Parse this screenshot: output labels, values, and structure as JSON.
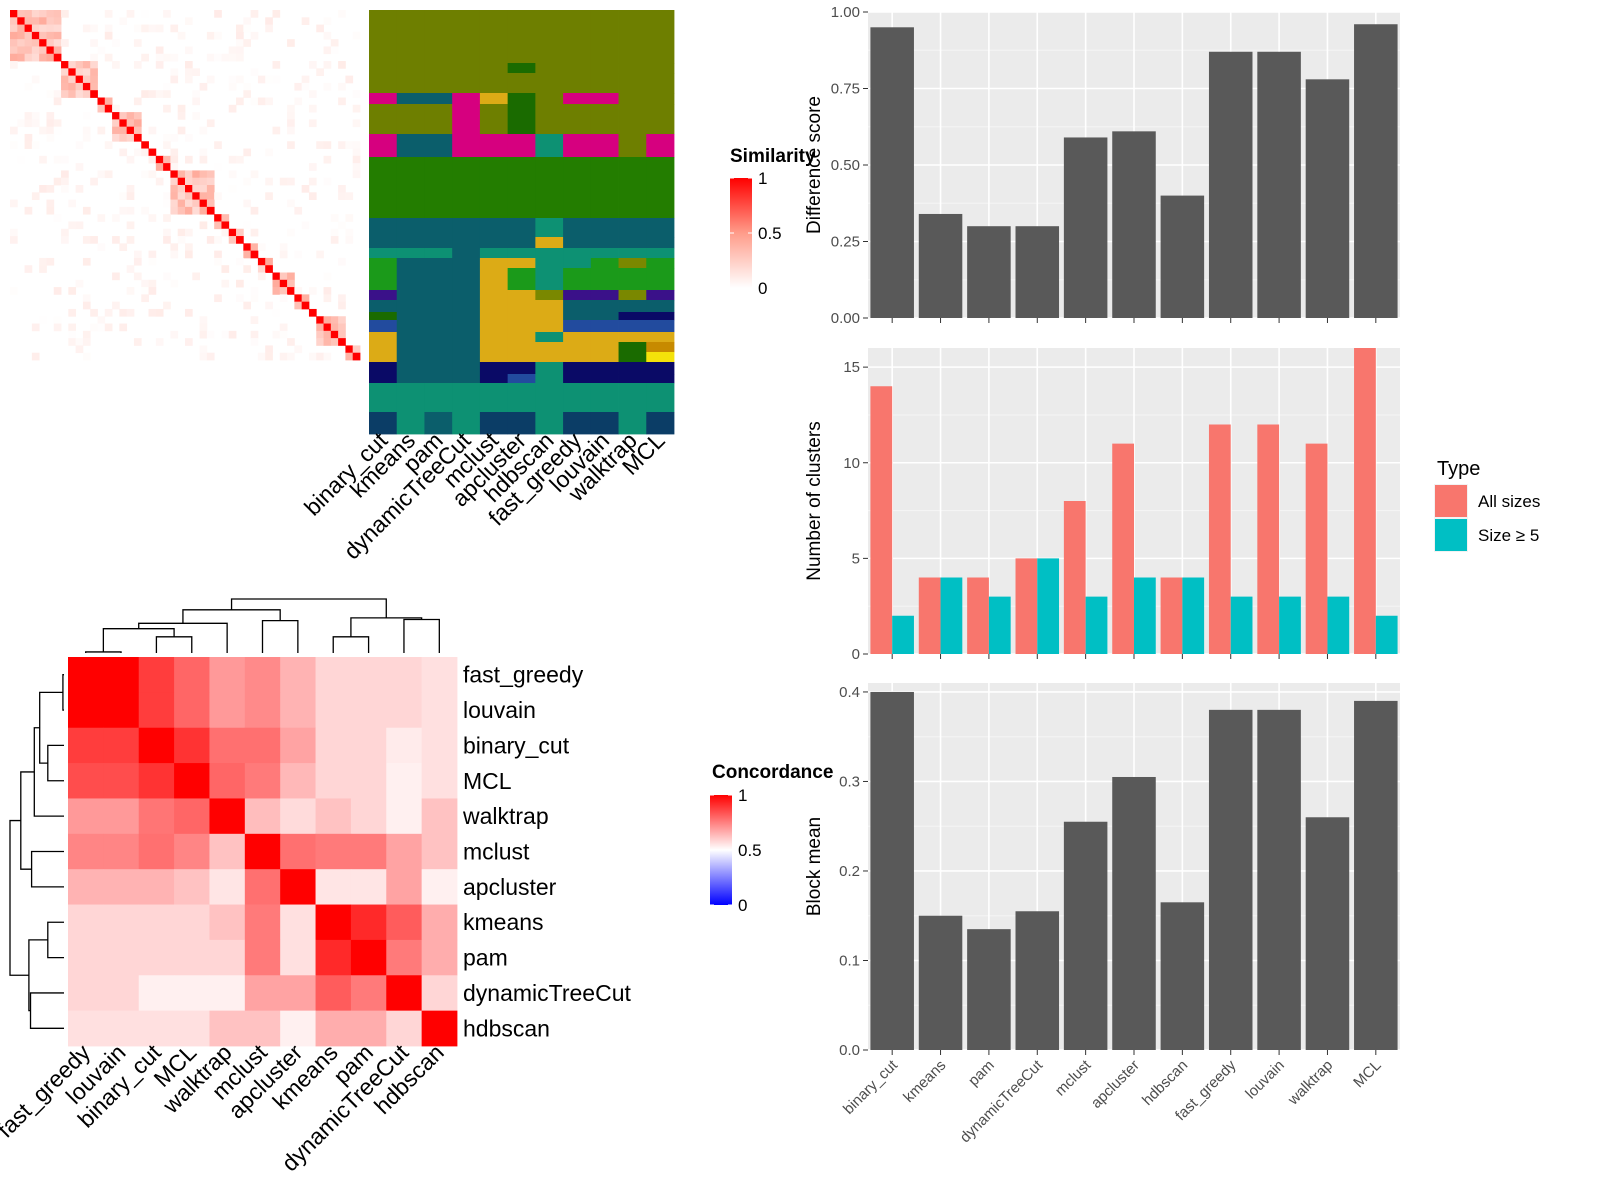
{
  "chart_data": [
    {
      "type": "heatmap",
      "panel": "similarity",
      "legend_title": "Similarity",
      "legend_ticks": [
        "1",
        "0.5",
        "0"
      ],
      "colors": {
        "high": "#ff0000",
        "mid": "#ff9c8a",
        "low": "#ffffff"
      },
      "size": 48,
      "blocks": [
        [
          0,
          7
        ],
        [
          7,
          12
        ],
        [
          12,
          14
        ],
        [
          14,
          18
        ],
        [
          18,
          19
        ],
        [
          19,
          20
        ],
        [
          20,
          22
        ],
        [
          22,
          28
        ],
        [
          28,
          30
        ],
        [
          30,
          32
        ],
        [
          32,
          34
        ],
        [
          34,
          36
        ],
        [
          36,
          39
        ],
        [
          39,
          41
        ],
        [
          41,
          42
        ],
        [
          42,
          46
        ],
        [
          46,
          48
        ]
      ]
    },
    {
      "type": "heatmap",
      "panel": "cluster_assignments",
      "x_labels": [
        "binary_cut",
        "kmeans",
        "pam",
        "dynamicTreeCut",
        "mclust",
        "apcluster",
        "hdbscan",
        "fast_greedy",
        "louvain",
        "walktrap",
        "MCL"
      ]
    },
    {
      "type": "heatmap",
      "panel": "concordance",
      "legend_title": "Concordance",
      "legend_ticks": [
        "1",
        "0.5",
        "0"
      ],
      "colors": {
        "high": "#ff0000",
        "mid": "#ffffff",
        "low": "#0000ff"
      },
      "row_labels": [
        "fast_greedy",
        "louvain",
        "binary_cut",
        "MCL",
        "walktrap",
        "mclust",
        "apcluster",
        "kmeans",
        "pam",
        "dynamicTreeCut",
        "hdbscan"
      ],
      "col_labels": [
        "fast_greedy",
        "louvain",
        "binary_cut",
        "MCL",
        "walktrap",
        "mclust",
        "apcluster",
        "kmeans",
        "pam",
        "dynamicTreeCut",
        "hdbscan"
      ],
      "values": [
        [
          1.0,
          1.0,
          0.88,
          0.8,
          0.7,
          0.73,
          0.65,
          0.58,
          0.58,
          0.58,
          0.56
        ],
        [
          1.0,
          1.0,
          0.88,
          0.8,
          0.7,
          0.73,
          0.65,
          0.58,
          0.58,
          0.58,
          0.56
        ],
        [
          0.88,
          0.88,
          1.0,
          0.9,
          0.78,
          0.78,
          0.68,
          0.58,
          0.58,
          0.54,
          0.56
        ],
        [
          0.85,
          0.85,
          0.9,
          1.0,
          0.8,
          0.76,
          0.64,
          0.58,
          0.58,
          0.53,
          0.56
        ],
        [
          0.7,
          0.7,
          0.77,
          0.8,
          1.0,
          0.63,
          0.57,
          0.62,
          0.58,
          0.53,
          0.62
        ],
        [
          0.74,
          0.74,
          0.78,
          0.74,
          0.62,
          1.0,
          0.78,
          0.76,
          0.76,
          0.68,
          0.62
        ],
        [
          0.65,
          0.65,
          0.65,
          0.62,
          0.55,
          0.78,
          1.0,
          0.55,
          0.55,
          0.68,
          0.53
        ],
        [
          0.58,
          0.58,
          0.58,
          0.58,
          0.62,
          0.76,
          0.56,
          1.0,
          0.92,
          0.82,
          0.66
        ],
        [
          0.58,
          0.58,
          0.58,
          0.58,
          0.58,
          0.76,
          0.56,
          0.92,
          1.0,
          0.76,
          0.66
        ],
        [
          0.58,
          0.58,
          0.53,
          0.53,
          0.53,
          0.68,
          0.68,
          0.82,
          0.76,
          1.0,
          0.58
        ],
        [
          0.56,
          0.56,
          0.56,
          0.56,
          0.62,
          0.62,
          0.53,
          0.66,
          0.66,
          0.58,
          1.0
        ]
      ]
    },
    {
      "type": "bar",
      "ylabel": "Difference score",
      "categories": [
        "binary_cut",
        "kmeans",
        "pam",
        "dynamicTreeCut",
        "mclust",
        "apcluster",
        "hdbscan",
        "fast_greedy",
        "louvain",
        "walktrap",
        "MCL"
      ],
      "values": [
        0.95,
        0.34,
        0.3,
        0.3,
        0.59,
        0.61,
        0.4,
        0.87,
        0.87,
        0.78,
        0.96
      ],
      "ylim": [
        0,
        1.0
      ],
      "yticks": [
        "0.00",
        "0.25",
        "0.50",
        "0.75",
        "1.00"
      ]
    },
    {
      "type": "bar",
      "ylabel": "Number of clusters",
      "categories": [
        "binary_cut",
        "kmeans",
        "pam",
        "dynamicTreeCut",
        "mclust",
        "apcluster",
        "hdbscan",
        "fast_greedy",
        "louvain",
        "walktrap",
        "MCL"
      ],
      "series": [
        {
          "name": "All sizes",
          "color": "#f8766d",
          "values": [
            14,
            4,
            4,
            5,
            8,
            11,
            4,
            12,
            12,
            11,
            16
          ]
        },
        {
          "name": "Size ≥ 5",
          "color": "#00bfc4",
          "values": [
            2,
            4,
            3,
            5,
            3,
            4,
            4,
            3,
            3,
            3,
            2
          ]
        }
      ],
      "legend_title": "Type",
      "ylim": [
        0,
        16
      ],
      "yticks": [
        "0",
        "5",
        "10",
        "15"
      ]
    },
    {
      "type": "bar",
      "ylabel": "Block mean",
      "categories": [
        "binary_cut",
        "kmeans",
        "pam",
        "dynamicTreeCut",
        "mclust",
        "apcluster",
        "hdbscan",
        "fast_greedy",
        "louvain",
        "walktrap",
        "MCL"
      ],
      "values": [
        0.4,
        0.15,
        0.135,
        0.155,
        0.255,
        0.305,
        0.165,
        0.38,
        0.38,
        0.26,
        0.39
      ],
      "ylim": [
        0,
        0.41
      ],
      "yticks": [
        "0.0",
        "0.1",
        "0.2",
        "0.3",
        "0.4"
      ]
    }
  ]
}
